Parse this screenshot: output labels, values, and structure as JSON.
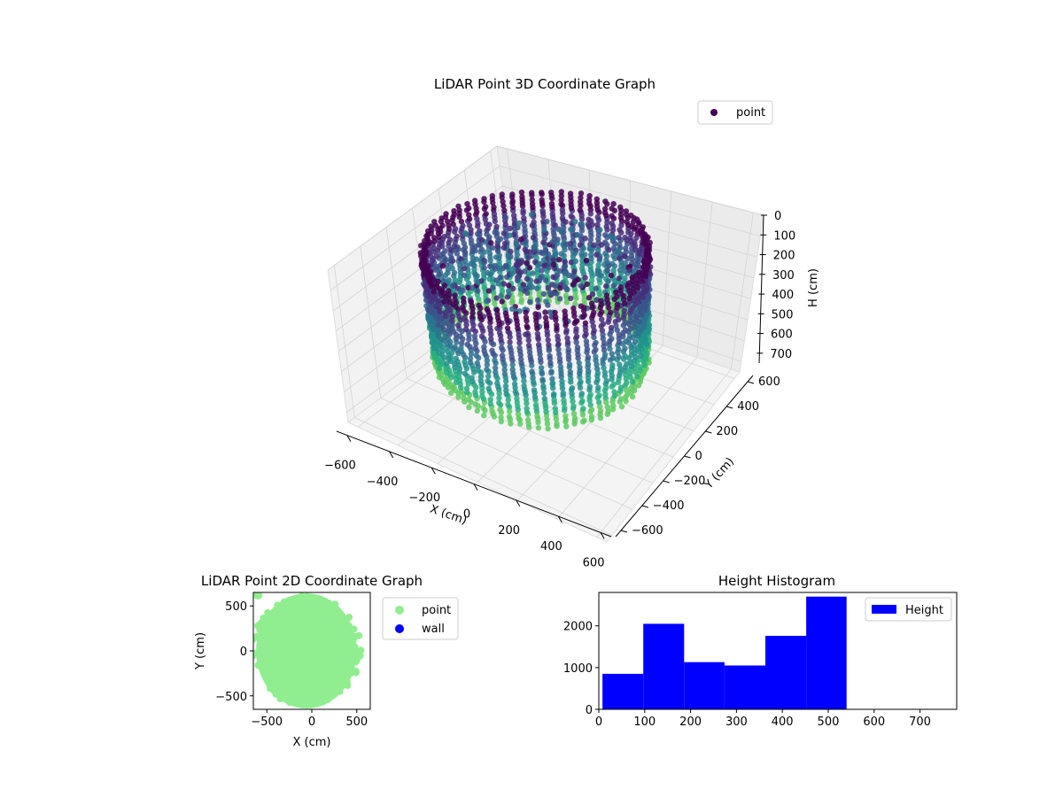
{
  "chart_data": [
    {
      "type": "scatter",
      "projection": "3d",
      "title": "LiDAR Point 3D Coordinate Graph",
      "xlabel": "X (cm)",
      "ylabel": "Y (cm)",
      "zlabel": "H (cm)",
      "xlim": [
        -650,
        650
      ],
      "ylim": [
        -650,
        650
      ],
      "zlim": [
        750,
        0
      ],
      "xticks": [
        "−600",
        "−400",
        "−200",
        "0",
        "200",
        "400",
        "600"
      ],
      "yticks": [
        "−600",
        "−400",
        "−200",
        "0",
        "200",
        "400",
        "600"
      ],
      "zticks": [
        "0",
        "100",
        "200",
        "300",
        "400",
        "500",
        "600",
        "700"
      ],
      "colormap": "viridis",
      "legend": {
        "placement": "top-right",
        "entries": [
          {
            "label": "point",
            "color": "#440154"
          }
        ]
      },
      "grid": true,
      "shape": "ring of points with outer wall radius ~550 cm, heights 0–540 cm, sparse interior rays"
    },
    {
      "type": "scatter",
      "title": "LiDAR Point 2D Coordinate Graph",
      "xlabel": "X (cm)",
      "ylabel": "Y (cm)",
      "xlim": [
        -650,
        650
      ],
      "ylim": [
        -650,
        650
      ],
      "xticks": [
        "−500",
        "0",
        "500"
      ],
      "yticks": [
        "500",
        "0",
        "−500"
      ],
      "series": [
        {
          "name": "point",
          "color": "#90ee90",
          "shape": "filled disc radius ~560 cm centered at (-50, 0)"
        },
        {
          "name": "wall",
          "color": "#0000ff",
          "points": []
        }
      ],
      "legend": {
        "placement": "outside-right"
      }
    },
    {
      "type": "bar",
      "subtype": "histogram",
      "title": "Height Histogram",
      "xlim": [
        0,
        780
      ],
      "ylim": [
        0,
        2800
      ],
      "xticks": [
        "0",
        "100",
        "200",
        "300",
        "400",
        "500",
        "600",
        "700"
      ],
      "yticks": [
        "0",
        "1000",
        "2000"
      ],
      "bins": [
        {
          "x0": 8,
          "x1": 97,
          "value": 850
        },
        {
          "x0": 97,
          "x1": 186,
          "value": 2050
        },
        {
          "x0": 186,
          "x1": 274,
          "value": 1130
        },
        {
          "x0": 274,
          "x1": 363,
          "value": 1050
        },
        {
          "x0": 363,
          "x1": 452,
          "value": 1760
        },
        {
          "x0": 452,
          "x1": 540,
          "value": 2700
        }
      ],
      "series": [
        {
          "name": "Height",
          "color": "#0000ff"
        }
      ],
      "legend": {
        "placement": "top-right"
      }
    }
  ]
}
